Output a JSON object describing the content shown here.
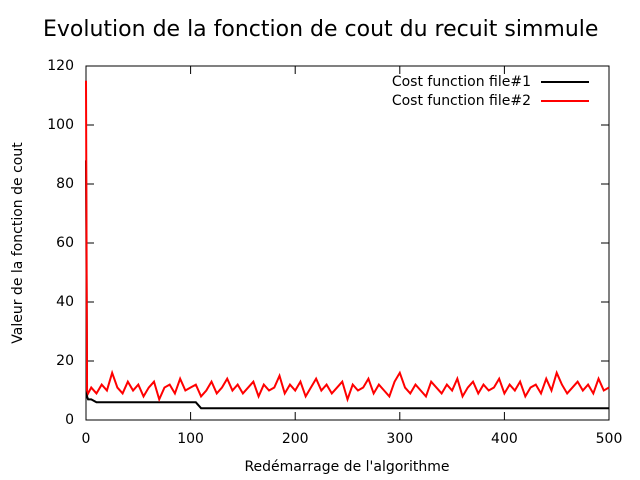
{
  "chart_data": {
    "type": "line",
    "title": "Evolution de la fonction de cout du recuit simmule",
    "x_label": "Redémarrage de l'algorithme",
    "y_label": "Valeur de la fonction de cout",
    "x": [
      0,
      1,
      2,
      5,
      10,
      15,
      20,
      25,
      30,
      35,
      40,
      45,
      50,
      55,
      60,
      65,
      70,
      75,
      80,
      85,
      90,
      95,
      100,
      105,
      110,
      115,
      120,
      125,
      130,
      135,
      140,
      145,
      150,
      155,
      160,
      165,
      170,
      175,
      180,
      185,
      190,
      195,
      200,
      205,
      210,
      215,
      220,
      225,
      230,
      235,
      240,
      245,
      250,
      255,
      260,
      265,
      270,
      275,
      280,
      285,
      290,
      295,
      300,
      305,
      310,
      315,
      320,
      325,
      330,
      335,
      340,
      345,
      350,
      355,
      360,
      365,
      370,
      375,
      380,
      385,
      390,
      395,
      400,
      405,
      410,
      415,
      420,
      425,
      430,
      435,
      440,
      445,
      450,
      455,
      460,
      465,
      470,
      475,
      480,
      485,
      490,
      495,
      500
    ],
    "series": [
      {
        "name": "Cost function file#1",
        "color": "#000000",
        "values": [
          88,
          8,
          7,
          7,
          6,
          6,
          6,
          6,
          6,
          6,
          6,
          6,
          6,
          6,
          6,
          6,
          6,
          6,
          6,
          6,
          6,
          6,
          6,
          6,
          4,
          4,
          4,
          4,
          4,
          4,
          4,
          4,
          4,
          4,
          4,
          4,
          4,
          4,
          4,
          4,
          4,
          4,
          4,
          4,
          4,
          4,
          4,
          4,
          4,
          4,
          4,
          4,
          4,
          4,
          4,
          4,
          4,
          4,
          4,
          4,
          4,
          4,
          4,
          4,
          4,
          4,
          4,
          4,
          4,
          4,
          4,
          4,
          4,
          4,
          4,
          4,
          4,
          4,
          4,
          4,
          4,
          4,
          4,
          4,
          4,
          4,
          4,
          4,
          4,
          4,
          4,
          4,
          4,
          4,
          4,
          4,
          4,
          4,
          4,
          4,
          4,
          4,
          4
        ]
      },
      {
        "name": "Cost function file#2",
        "color": "#ff0000",
        "values": [
          115,
          10,
          9,
          11,
          9,
          12,
          10,
          16,
          11,
          9,
          13,
          10,
          12,
          8,
          11,
          13,
          7,
          11,
          12,
          9,
          14,
          10,
          11,
          12,
          8,
          10,
          13,
          9,
          11,
          14,
          10,
          12,
          9,
          11,
          13,
          8,
          12,
          10,
          11,
          15,
          9,
          12,
          10,
          13,
          8,
          11,
          14,
          10,
          12,
          9,
          11,
          13,
          7,
          12,
          10,
          11,
          14,
          9,
          12,
          10,
          8,
          13,
          16,
          11,
          9,
          12,
          10,
          8,
          13,
          11,
          9,
          12,
          10,
          14,
          8,
          11,
          13,
          9,
          12,
          10,
          11,
          14,
          9,
          12,
          10,
          13,
          8,
          11,
          12,
          9,
          14,
          10,
          16,
          12,
          9,
          11,
          13,
          10,
          12,
          9,
          14,
          10,
          11
        ]
      }
    ],
    "xlim": [
      0,
      500
    ],
    "xticks": [
      0,
      100,
      200,
      300,
      400,
      500
    ],
    "ylim": [
      0,
      120
    ],
    "yticks": [
      0,
      20,
      40,
      60,
      80,
      100,
      120
    ],
    "legend": "top-right"
  }
}
